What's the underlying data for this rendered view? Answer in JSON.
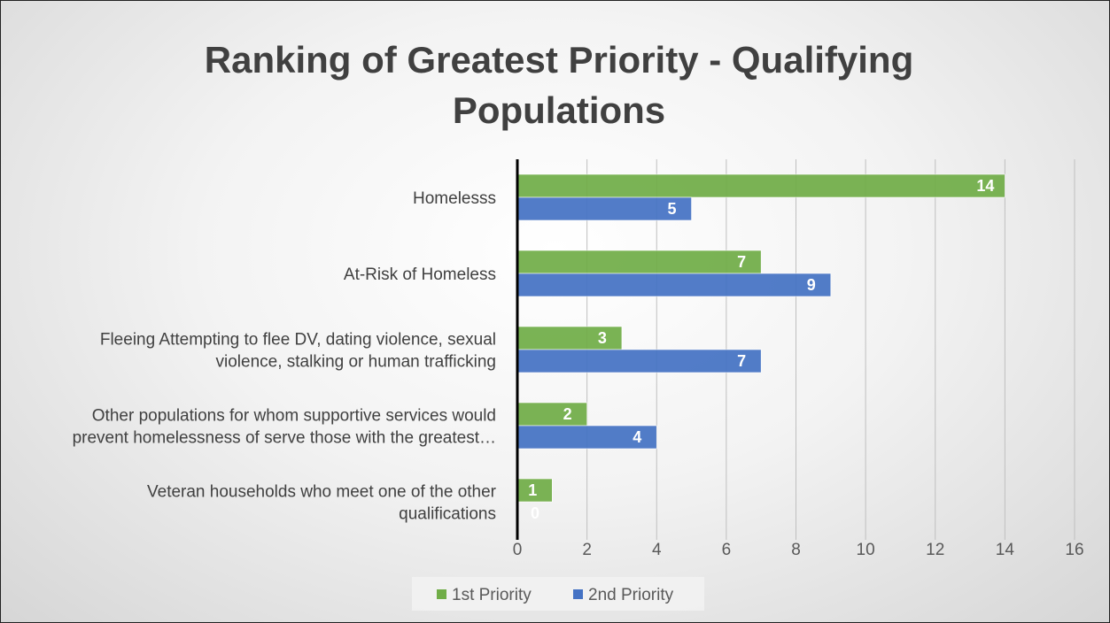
{
  "chart_data": {
    "type": "bar",
    "orientation": "horizontal",
    "title": "Ranking of Greatest Priority - Qualifying Populations",
    "title_lines": [
      "Ranking of Greatest Priority - Qualifying",
      "Populations"
    ],
    "categories": [
      "Homelesss",
      "At-Risk of Homeless",
      "Fleeing Attempting to flee DV, dating violence, sexual violence, stalking or human trafficking",
      "Other populations for whom supportive services would prevent homelessness of serve those with the greatest…",
      "Veteran households who meet one of the other qualifications"
    ],
    "category_label_lines": [
      [
        "Homelesss"
      ],
      [
        "At-Risk of Homeless"
      ],
      [
        "Fleeing Attempting to flee DV, dating violence, sexual",
        "violence, stalking or human trafficking"
      ],
      [
        "Other populations for whom supportive services would",
        "prevent homelessness of serve those with the greatest…"
      ],
      [
        "Veteran households who meet one of the other",
        "qualifications"
      ]
    ],
    "series": [
      {
        "name": "1st Priority",
        "values": [
          14,
          7,
          3,
          2,
          1
        ],
        "color": "#70ad47"
      },
      {
        "name": "2nd Priority",
        "values": [
          5,
          9,
          7,
          4,
          0
        ],
        "color": "#4472c4"
      }
    ],
    "xlim": [
      0,
      16
    ],
    "xticks": [
      0,
      2,
      4,
      6,
      8,
      10,
      12,
      14,
      16
    ],
    "grid": true,
    "legend_position": "bottom",
    "data_labels": true
  }
}
